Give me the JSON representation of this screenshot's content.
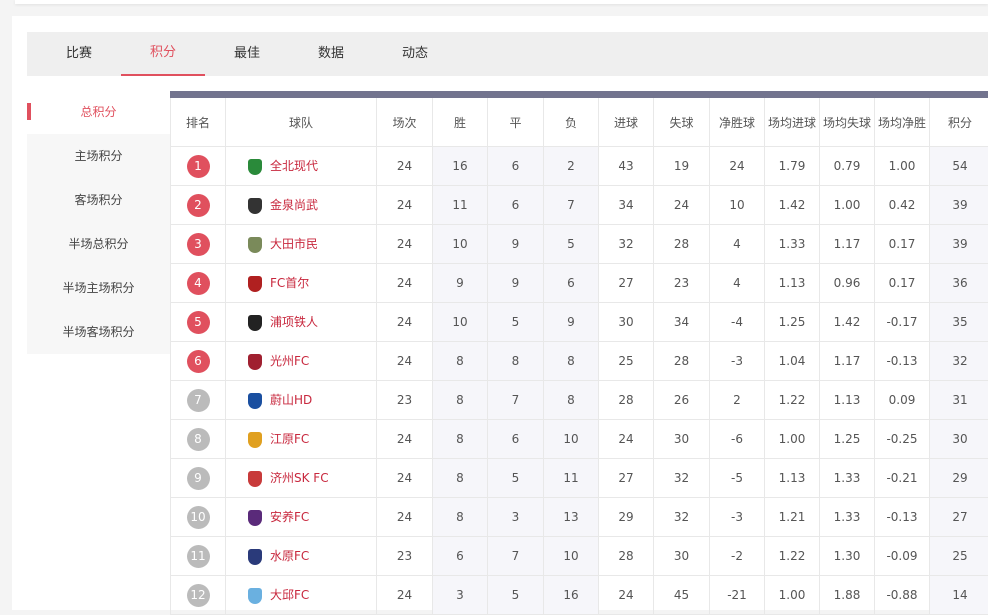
{
  "tabs": [
    "比赛",
    "积分",
    "最佳",
    "数据",
    "动态"
  ],
  "active_tab": 1,
  "side_menu": [
    "总积分",
    "主场积分",
    "客场积分",
    "半场总积分",
    "半场主场积分",
    "半场客场积分"
  ],
  "columns": [
    "排名",
    "球队",
    "场次",
    "胜",
    "平",
    "负",
    "进球",
    "失球",
    "净胜球",
    "场均进球",
    "场均失球",
    "场均净胜",
    "积分"
  ],
  "rows": [
    [
      "1",
      "全北现代",
      "24",
      "16",
      "6",
      "2",
      "43",
      "19",
      "24",
      "1.79",
      "0.79",
      "1.00",
      "54"
    ],
    [
      "2",
      "金泉尚武",
      "24",
      "11",
      "6",
      "7",
      "34",
      "24",
      "10",
      "1.42",
      "1.00",
      "0.42",
      "39"
    ],
    [
      "3",
      "大田市民",
      "24",
      "10",
      "9",
      "5",
      "32",
      "28",
      "4",
      "1.33",
      "1.17",
      "0.17",
      "39"
    ],
    [
      "4",
      "FC首尔",
      "24",
      "9",
      "9",
      "6",
      "27",
      "23",
      "4",
      "1.13",
      "0.96",
      "0.17",
      "36"
    ],
    [
      "5",
      "浦项铁人",
      "24",
      "10",
      "5",
      "9",
      "30",
      "34",
      "-4",
      "1.25",
      "1.42",
      "-0.17",
      "35"
    ],
    [
      "6",
      "光州FC",
      "24",
      "8",
      "8",
      "8",
      "25",
      "28",
      "-3",
      "1.04",
      "1.17",
      "-0.13",
      "32"
    ],
    [
      "7",
      "蔚山HD",
      "23",
      "8",
      "7",
      "8",
      "28",
      "26",
      "2",
      "1.22",
      "1.13",
      "0.09",
      "31"
    ],
    [
      "8",
      "江原FC",
      "24",
      "8",
      "6",
      "10",
      "24",
      "30",
      "-6",
      "1.00",
      "1.25",
      "-0.25",
      "30"
    ],
    [
      "9",
      "济州SK FC",
      "24",
      "8",
      "5",
      "11",
      "27",
      "32",
      "-5",
      "1.13",
      "1.33",
      "-0.21",
      "29"
    ],
    [
      "10",
      "安养FC",
      "24",
      "8",
      "3",
      "13",
      "29",
      "32",
      "-3",
      "1.21",
      "1.33",
      "-0.13",
      "27"
    ],
    [
      "11",
      "水原FC",
      "23",
      "6",
      "7",
      "10",
      "28",
      "30",
      "-2",
      "1.22",
      "1.30",
      "-0.09",
      "25"
    ],
    [
      "12",
      "大邱FC",
      "24",
      "3",
      "5",
      "16",
      "24",
      "45",
      "-21",
      "1.00",
      "1.88",
      "-0.88",
      "14"
    ]
  ],
  "logo_colors": [
    "#2a8a3a",
    "#333",
    "#7a8a5a",
    "#b02020",
    "#222",
    "#a02030",
    "#1a4fa0",
    "#e0a020",
    "#c83a3a",
    "#5a2a7a",
    "#2a3a7a",
    "#6ab0e0"
  ],
  "colors": {
    "accent": "#e0505e",
    "header_bar": "#72738e",
    "team_text": "#c8283e"
  }
}
